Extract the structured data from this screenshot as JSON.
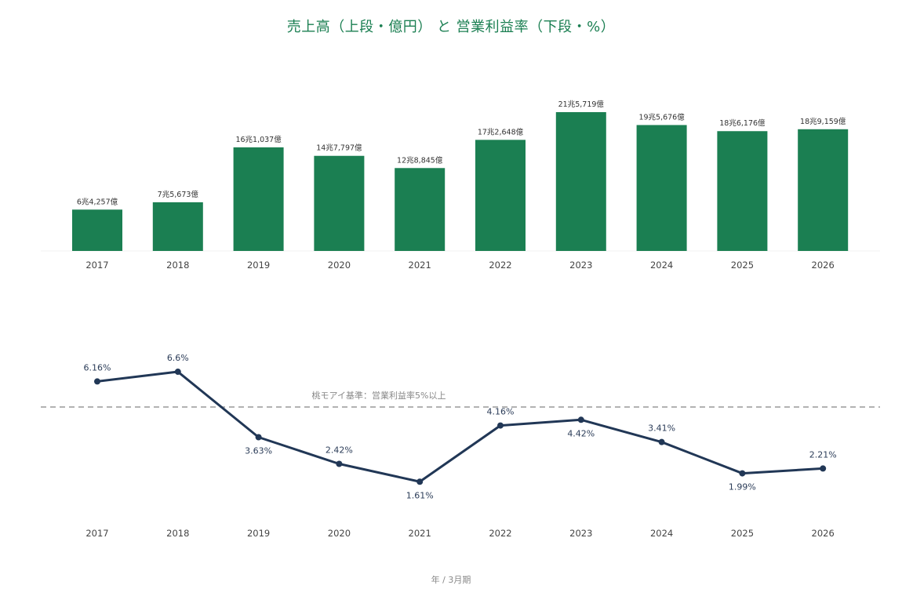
{
  "title": "売上高（上段・億円） と 営業利益率（下段・%）",
  "footer": "年 / 3月期",
  "colors": {
    "bar": "#1b7f52",
    "line": "#213756",
    "reference": "#999999",
    "title": "#1b7f52"
  },
  "chart_data": [
    {
      "type": "bar",
      "categories": [
        "2017",
        "2018",
        "2019",
        "2020",
        "2021",
        "2022",
        "2023",
        "2024",
        "2025",
        "2026"
      ],
      "values": [
        64257,
        75673,
        161037,
        147797,
        128845,
        172648,
        215719,
        195676,
        186176,
        189159
      ],
      "value_labels": [
        "6兆4,257億",
        "7兆5,673億",
        "16兆1,037億",
        "14兆7,797億",
        "12兆8,845億",
        "17兆2,648億",
        "21兆5,719億",
        "19兆5,676億",
        "18兆6,176億",
        "18兆9,159億"
      ],
      "title": "売上高（上段・億円）",
      "xlabel": "年 / 3月期",
      "ylim": [
        0,
        220000
      ]
    },
    {
      "type": "line",
      "categories": [
        "2017",
        "2018",
        "2019",
        "2020",
        "2021",
        "2022",
        "2023",
        "2024",
        "2025",
        "2026"
      ],
      "values": [
        6.16,
        6.6,
        3.63,
        2.42,
        1.61,
        4.16,
        4.42,
        3.41,
        1.99,
        2.21
      ],
      "value_labels": [
        "6.16%",
        "6.6%",
        "3.63%",
        "2.42%",
        "1.61%",
        "4.16%",
        "4.42%",
        "3.41%",
        "1.99%",
        "2.21%"
      ],
      "label_positions": [
        "above",
        "above",
        "below",
        "above",
        "below",
        "above",
        "below",
        "above",
        "below",
        "above"
      ],
      "title": "営業利益率（下段・%）",
      "xlabel": "年 / 3月期",
      "ylim": [
        0,
        7
      ],
      "reference_line": {
        "value": 5,
        "label": "桃モアイ基準：営業利益率5%以上"
      }
    }
  ]
}
